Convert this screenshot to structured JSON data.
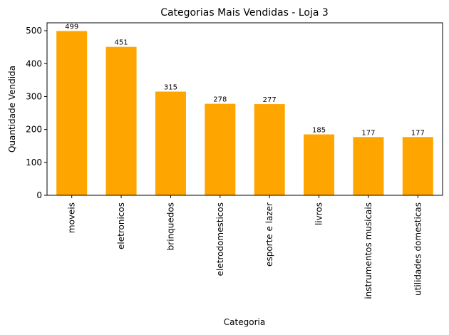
{
  "chart_data": {
    "type": "bar",
    "title": "Categorias Mais Vendidas - Loja 3",
    "xlabel": "Categoria",
    "ylabel": "Quantidade Vendida",
    "categories": [
      "moveis",
      "eletronicos",
      "brinquedos",
      "eletrodomesticos",
      "esporte e lazer",
      "livros",
      "instrumentos musicais",
      "utilidades domesticas"
    ],
    "values": [
      499,
      451,
      315,
      278,
      277,
      185,
      177,
      177
    ],
    "ylim": [
      0,
      524
    ],
    "yticks": [
      0,
      100,
      200,
      300,
      400,
      500
    ],
    "grid": false,
    "legend": "none",
    "bar_color": "#ffa500",
    "data_labels": true
  }
}
